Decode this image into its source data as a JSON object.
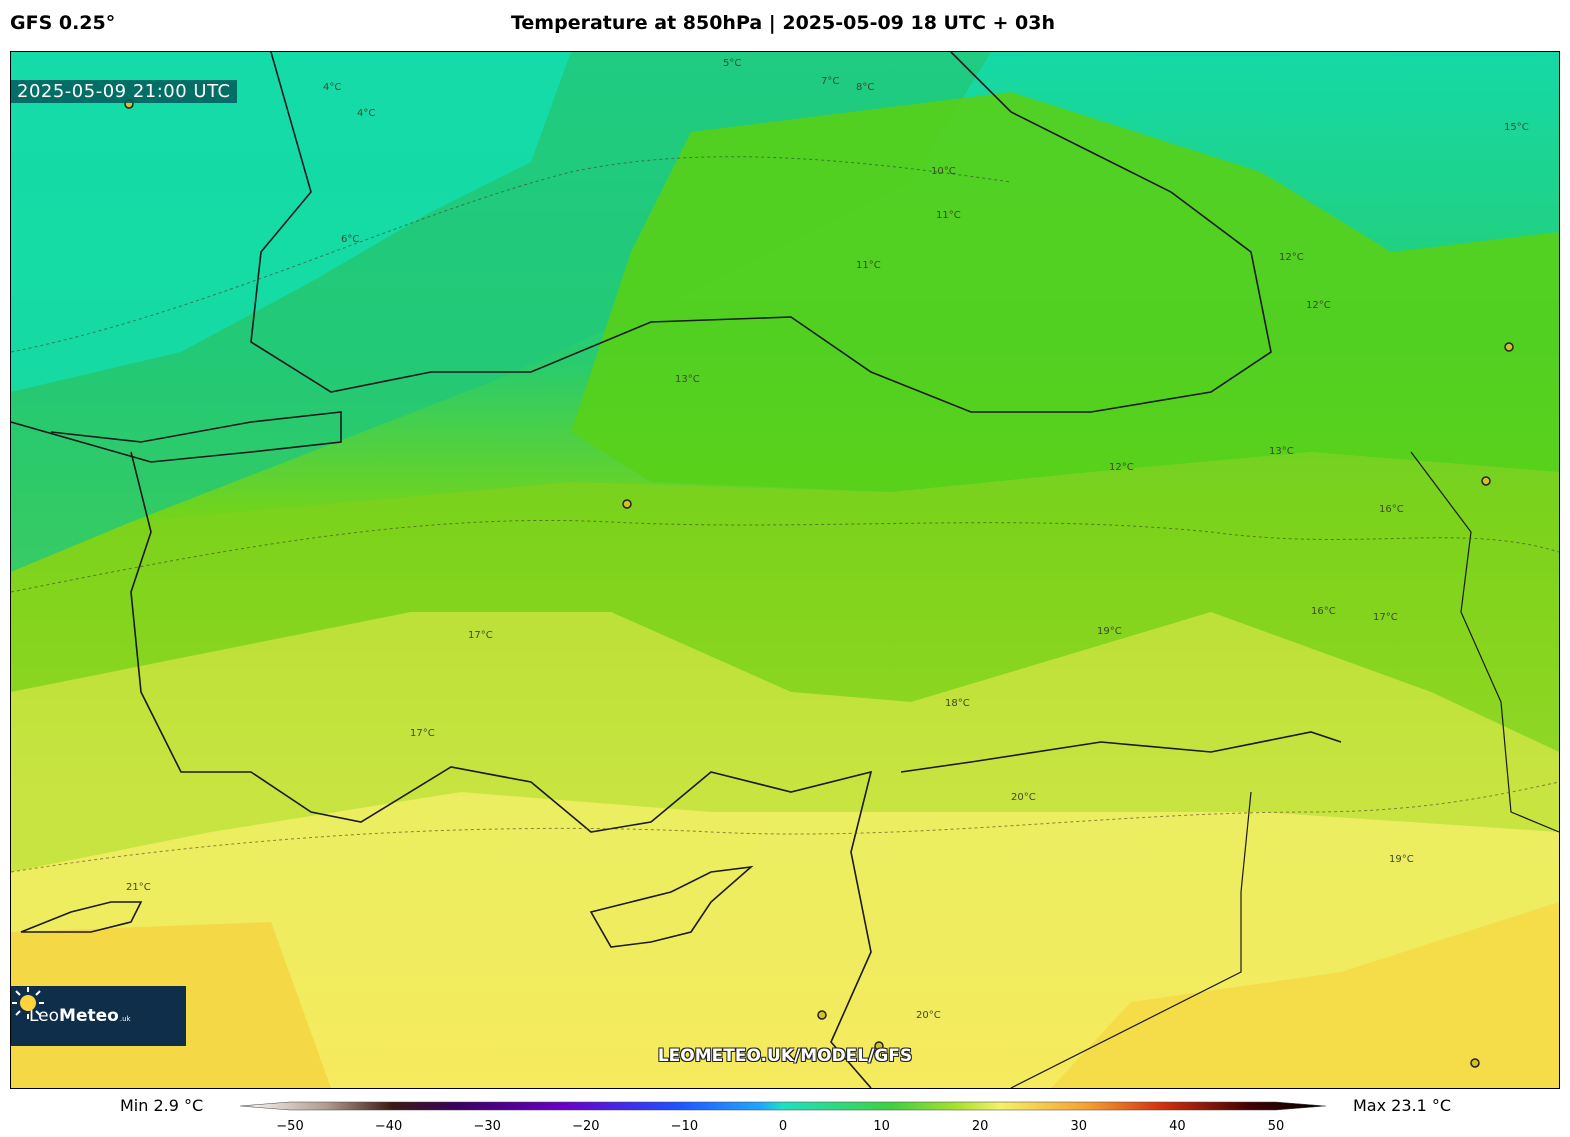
{
  "header": {
    "model": "GFS 0.25°",
    "title": "Temperature at 850hPa | 2025-05-09 18 UTC + 03h"
  },
  "map": {
    "valid_time": "2025-05-09 21:00 UTC",
    "watermark": "LEOMETEO.UK/MODEL/GFS",
    "logo": {
      "name_light": "Leo",
      "name_bold": "Meteo",
      "suffix": ".uk"
    },
    "contour_labels": [
      "4°C",
      "4°C",
      "5°C",
      "6°C",
      "7°C",
      "8°C",
      "10°C",
      "11°C",
      "11°C",
      "12°C",
      "12°C",
      "12°C",
      "13°C",
      "13°C",
      "15°C",
      "16°C",
      "16°C",
      "17°C",
      "17°C",
      "17°C",
      "18°C",
      "19°C",
      "19°C",
      "20°C",
      "20°C",
      "21°C"
    ]
  },
  "colorbar": {
    "min_label": "Min 2.9 °C",
    "max_label": "Max 23.1 °C",
    "ticks": [
      "−50",
      "−40",
      "−30",
      "−20",
      "−10",
      "0",
      "10",
      "20",
      "30",
      "40",
      "50"
    ],
    "range": [
      -50,
      50
    ],
    "colors": {
      "cold_extreme": "#ffffff",
      "cold": "#4b0082",
      "cool": "#2a7fff",
      "zero": "#1ee0c0",
      "mild": "#5ad21e",
      "warm": "#f5f06a",
      "hot": "#e0601a",
      "extreme": "#000000"
    }
  }
}
